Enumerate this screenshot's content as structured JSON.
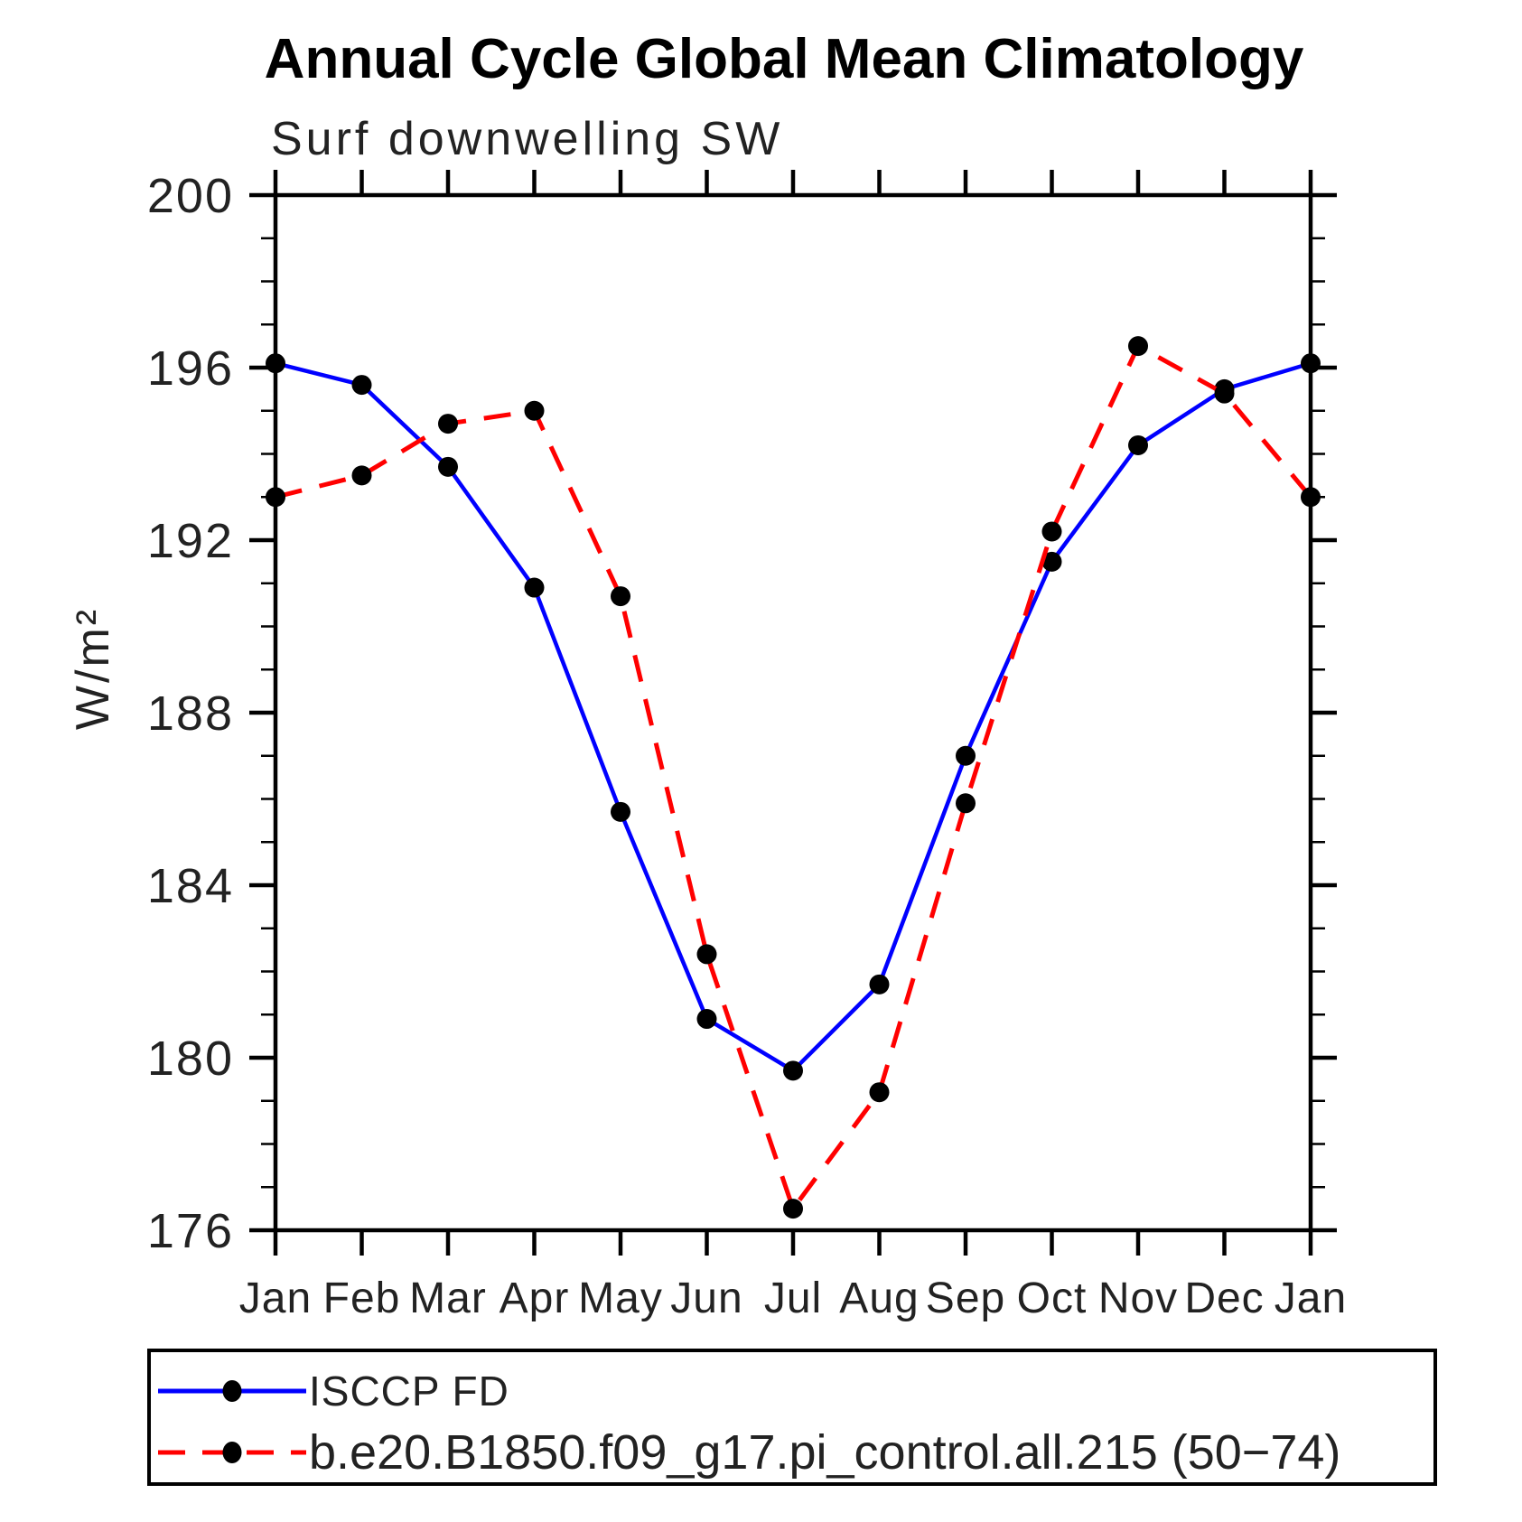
{
  "chart_data": {
    "type": "line",
    "title": "Annual Cycle Global Mean Climatology",
    "subtitle": "Surf downwelling SW",
    "ylabel": "W/m²",
    "categories": [
      "Jan",
      "Feb",
      "Mar",
      "Apr",
      "May",
      "Jun",
      "Jul",
      "Aug",
      "Sep",
      "Oct",
      "Nov",
      "Dec",
      "Jan"
    ],
    "y_axis": {
      "min": 176,
      "max": 200,
      "major_step": 4,
      "minor_step": 1,
      "major_ticks": [
        176,
        180,
        184,
        188,
        192,
        196,
        200
      ]
    },
    "grid": false,
    "legend_position": "bottom",
    "series": [
      {
        "name": "ISCCP FD",
        "color": "#0000ff",
        "style": "solid",
        "marker": "filled-circle",
        "marker_color": "#000000",
        "values": [
          196.1,
          195.6,
          193.7,
          190.9,
          185.7,
          180.9,
          179.7,
          181.7,
          187.0,
          191.5,
          194.2,
          195.5,
          196.1
        ]
      },
      {
        "name": "b.e20.B1850.f09_g17.pi_control.all.215 (50−74)",
        "color": "#ff0000",
        "style": "dashed",
        "marker": "filled-circle",
        "marker_color": "#000000",
        "values": [
          193.0,
          193.5,
          194.7,
          195.0,
          190.7,
          182.4,
          176.5,
          179.2,
          185.9,
          192.2,
          196.5,
          195.4,
          193.0
        ]
      }
    ]
  }
}
